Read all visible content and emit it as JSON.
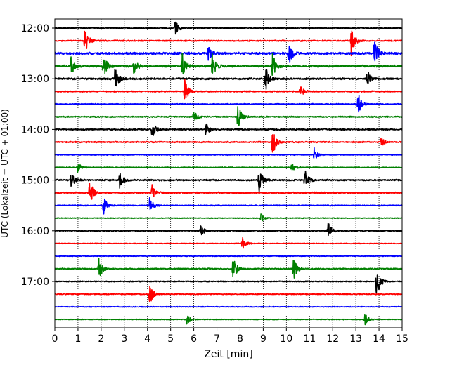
{
  "chart_data": {
    "type": "line",
    "title": "",
    "xlabel": "Zeit  [min]",
    "ylabel": "UTC (Lokalzeit = UTC + 01:00)",
    "xlim": [
      0,
      15
    ],
    "x_ticks": [
      0,
      1,
      2,
      3,
      4,
      5,
      6,
      7,
      8,
      9,
      10,
      11,
      12,
      13,
      14,
      15
    ],
    "y_tick_labels": [
      "12:00",
      "13:00",
      "14:00",
      "15:00",
      "16:00",
      "17:00"
    ],
    "y_tick_rows": [
      0,
      4,
      8,
      12,
      16,
      20
    ],
    "grid": "vertical-dotted",
    "colors": [
      "#000000",
      "#ff0000",
      "#0000ff",
      "#008000"
    ],
    "trace_interval_minutes": 15,
    "traces": [
      {
        "start": "12:00",
        "color": "#000000",
        "amplitude": 0.25,
        "events": [
          {
            "x": 5.2,
            "a": 0.5
          }
        ]
      },
      {
        "start": "12:15",
        "color": "#ff0000",
        "amplitude": 0.25,
        "events": [
          {
            "x": 1.3,
            "a": 1.0
          },
          {
            "x": 12.8,
            "a": 1.0
          }
        ]
      },
      {
        "start": "12:30",
        "color": "#0000ff",
        "amplitude": 0.45,
        "events": [
          {
            "x": 6.6,
            "a": 0.6
          },
          {
            "x": 10.1,
            "a": 0.9
          },
          {
            "x": 13.8,
            "a": 1.1
          }
        ]
      },
      {
        "start": "12:45",
        "color": "#008000",
        "amplitude": 0.4,
        "events": [
          {
            "x": 0.7,
            "a": 0.7
          },
          {
            "x": 2.1,
            "a": 0.8
          },
          {
            "x": 3.4,
            "a": 0.6
          },
          {
            "x": 5.5,
            "a": 1.0
          },
          {
            "x": 6.8,
            "a": 0.8
          },
          {
            "x": 9.4,
            "a": 0.9
          }
        ]
      },
      {
        "start": "13:00",
        "color": "#000000",
        "amplitude": 0.35,
        "events": [
          {
            "x": 2.6,
            "a": 1.0
          },
          {
            "x": 9.1,
            "a": 0.9
          },
          {
            "x": 13.5,
            "a": 0.6
          }
        ]
      },
      {
        "start": "13:15",
        "color": "#ff0000",
        "amplitude": 0.25,
        "events": [
          {
            "x": 5.6,
            "a": 1.0
          },
          {
            "x": 10.6,
            "a": 0.4
          }
        ]
      },
      {
        "start": "13:30",
        "color": "#0000ff",
        "amplitude": 0.2,
        "events": [
          {
            "x": 13.1,
            "a": 0.8
          }
        ]
      },
      {
        "start": "13:45",
        "color": "#008000",
        "amplitude": 0.25,
        "events": [
          {
            "x": 7.9,
            "a": 1.0
          },
          {
            "x": 6.0,
            "a": 0.5
          }
        ]
      },
      {
        "start": "14:00",
        "color": "#000000",
        "amplitude": 0.3,
        "events": [
          {
            "x": 4.2,
            "a": 0.6
          },
          {
            "x": 6.5,
            "a": 0.5
          }
        ]
      },
      {
        "start": "14:15",
        "color": "#ff0000",
        "amplitude": 0.25,
        "events": [
          {
            "x": 9.4,
            "a": 1.0
          },
          {
            "x": 14.1,
            "a": 0.4
          }
        ]
      },
      {
        "start": "14:30",
        "color": "#0000ff",
        "amplitude": 0.2,
        "events": [
          {
            "x": 11.2,
            "a": 0.5
          }
        ]
      },
      {
        "start": "14:45",
        "color": "#008000",
        "amplitude": 0.2,
        "events": [
          {
            "x": 1.0,
            "a": 0.4
          },
          {
            "x": 10.2,
            "a": 0.4
          }
        ]
      },
      {
        "start": "15:00",
        "color": "#000000",
        "amplitude": 0.3,
        "events": [
          {
            "x": 0.7,
            "a": 0.6
          },
          {
            "x": 2.8,
            "a": 0.6
          },
          {
            "x": 8.8,
            "a": 1.0
          },
          {
            "x": 10.8,
            "a": 0.8
          }
        ]
      },
      {
        "start": "15:15",
        "color": "#ff0000",
        "amplitude": 0.3,
        "events": [
          {
            "x": 1.5,
            "a": 1.0
          },
          {
            "x": 4.2,
            "a": 0.5
          }
        ]
      },
      {
        "start": "15:30",
        "color": "#0000ff",
        "amplitude": 0.2,
        "events": [
          {
            "x": 2.1,
            "a": 0.6
          },
          {
            "x": 4.1,
            "a": 0.6
          }
        ]
      },
      {
        "start": "15:45",
        "color": "#008000",
        "amplitude": 0.15,
        "events": [
          {
            "x": 8.9,
            "a": 0.4
          }
        ]
      },
      {
        "start": "16:00",
        "color": "#000000",
        "amplitude": 0.25,
        "events": [
          {
            "x": 6.3,
            "a": 0.4
          },
          {
            "x": 11.8,
            "a": 0.6
          }
        ]
      },
      {
        "start": "16:15",
        "color": "#ff0000",
        "amplitude": 0.15,
        "events": [
          {
            "x": 8.1,
            "a": 0.5
          }
        ]
      },
      {
        "start": "16:30",
        "color": "#0000ff",
        "amplitude": 0.15,
        "events": []
      },
      {
        "start": "16:45",
        "color": "#008000",
        "amplitude": 0.25,
        "events": [
          {
            "x": 1.9,
            "a": 0.8
          },
          {
            "x": 7.7,
            "a": 0.9
          },
          {
            "x": 10.3,
            "a": 1.0
          }
        ]
      },
      {
        "start": "17:00",
        "color": "#000000",
        "amplitude": 0.2,
        "events": [
          {
            "x": 13.9,
            "a": 1.3
          }
        ]
      },
      {
        "start": "17:15",
        "color": "#ff0000",
        "amplitude": 0.2,
        "events": [
          {
            "x": 4.1,
            "a": 0.8
          }
        ]
      },
      {
        "start": "17:30",
        "color": "#0000ff",
        "amplitude": 0.15,
        "events": []
      },
      {
        "start": "17:45",
        "color": "#008000",
        "amplitude": 0.15,
        "events": [
          {
            "x": 5.7,
            "a": 0.4
          },
          {
            "x": 13.4,
            "a": 0.4
          }
        ]
      }
    ]
  }
}
